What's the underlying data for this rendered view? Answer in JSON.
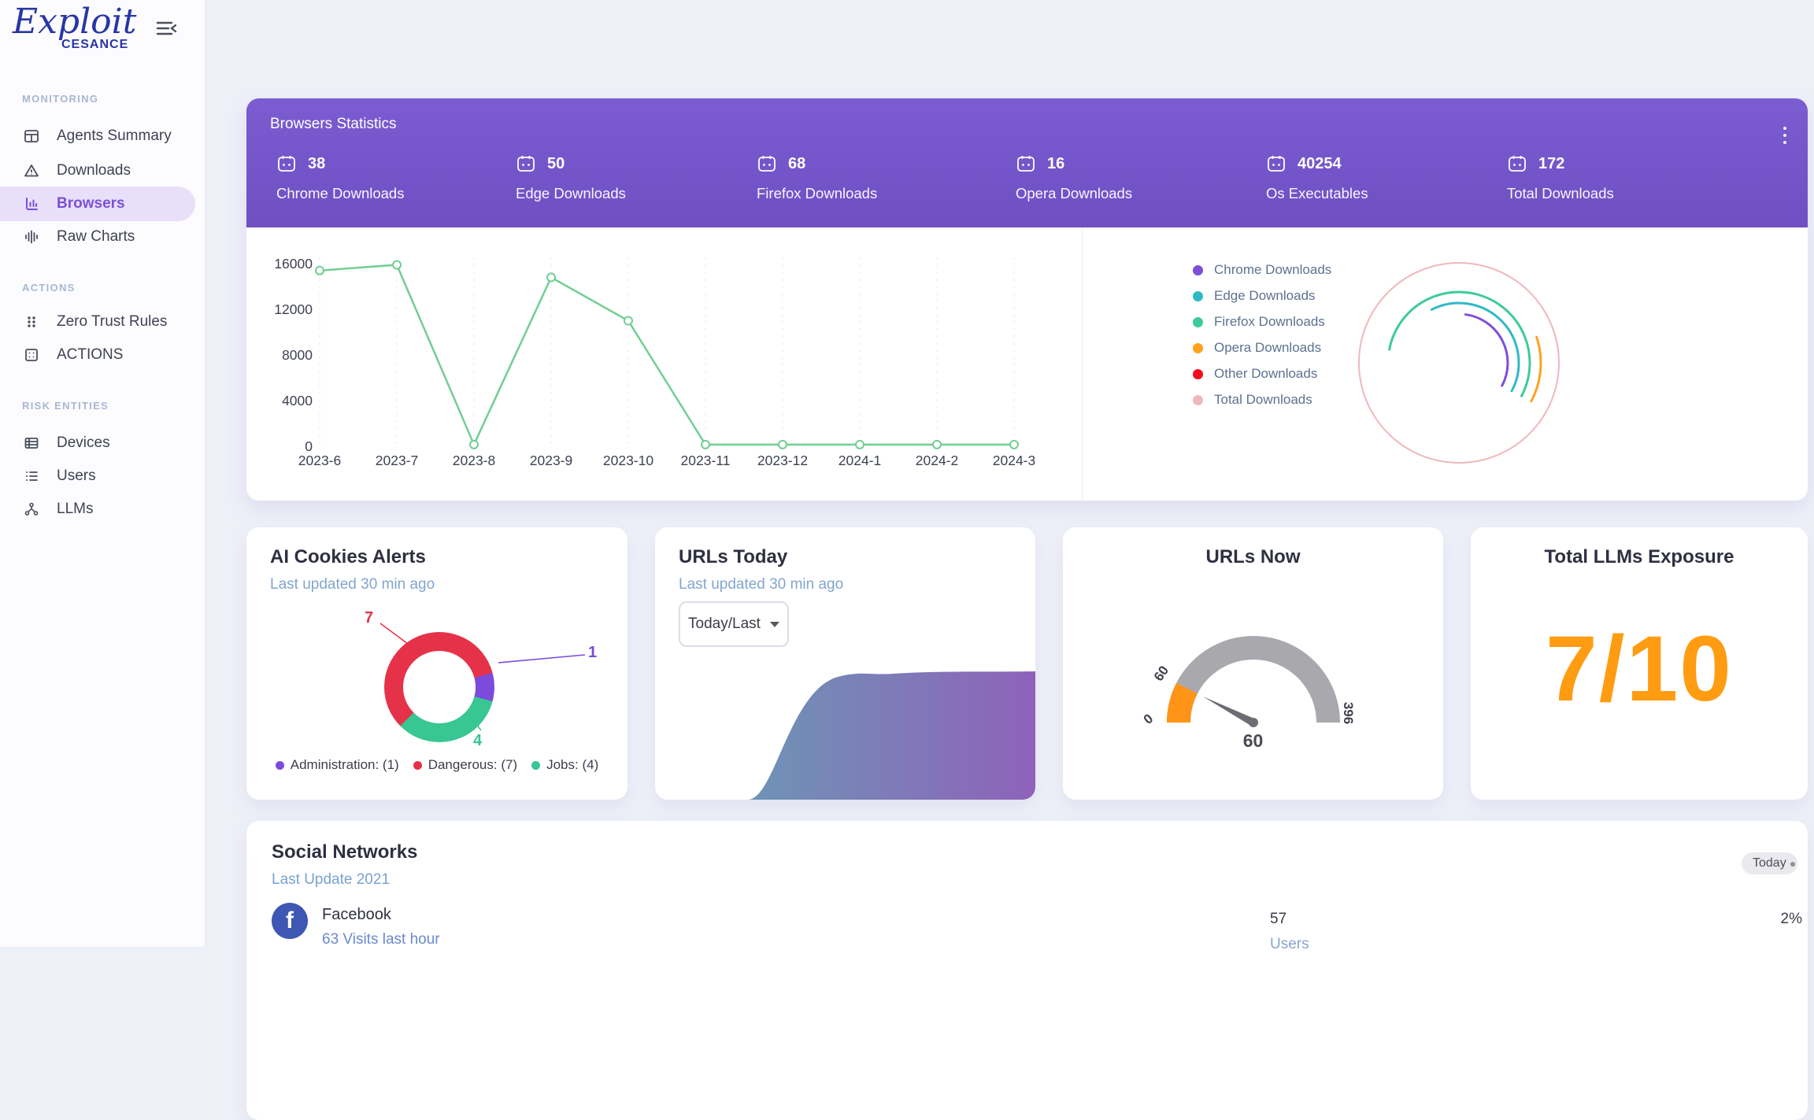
{
  "brand": {
    "name": "Exploit",
    "sub": "CESANCE"
  },
  "sidebar": {
    "sections": [
      {
        "label": "MONITORING",
        "items": [
          {
            "label": "Agents Summary"
          },
          {
            "label": "Downloads"
          },
          {
            "label": "Browsers",
            "active": true
          },
          {
            "label": "Raw Charts"
          }
        ]
      },
      {
        "label": "ACTIONS",
        "items": [
          {
            "label": "Zero Trust Rules"
          },
          {
            "label": "ACTIONS"
          }
        ]
      },
      {
        "label": "RISK ENTITIES",
        "items": [
          {
            "label": "Devices"
          },
          {
            "label": "Users"
          },
          {
            "label": "LLMs"
          }
        ]
      }
    ]
  },
  "browsers_card": {
    "title": "Browsers Statistics",
    "stats": [
      {
        "value": "38",
        "label": "Chrome Downloads"
      },
      {
        "value": "50",
        "label": "Edge Downloads"
      },
      {
        "value": "68",
        "label": "Firefox Downloads"
      },
      {
        "value": "16",
        "label": "Opera Downloads"
      },
      {
        "value": "40254",
        "label": "Os Executables"
      },
      {
        "value": "172",
        "label": "Total Downloads"
      }
    ],
    "chart_data": {
      "type": "line",
      "categories": [
        "2023-6",
        "2023-7",
        "2023-8",
        "2023-9",
        "2023-10",
        "2023-11",
        "2023-12",
        "2024-1",
        "2024-2",
        "2024-3"
      ],
      "values": [
        15400,
        15900,
        150,
        14800,
        11000,
        150,
        150,
        150,
        150,
        150
      ],
      "ylim": [
        0,
        16000
      ],
      "yticks": [
        0,
        4000,
        8000,
        12000,
        16000
      ],
      "line_color": "#72ce92",
      "grid": "vertical-dashed"
    },
    "legend": [
      {
        "label": "Chrome Downloads",
        "color": "#7e4fd8",
        "value": 38
      },
      {
        "label": "Edge Downloads",
        "color": "#2fb9c7",
        "value": 50
      },
      {
        "label": "Firefox Downloads",
        "color": "#3ecb97",
        "value": 68
      },
      {
        "label": "Opera Downloads",
        "color": "#ffa21f",
        "value": 16
      },
      {
        "label": "Other Downloads",
        "color": "#f20d1e",
        "value": null
      },
      {
        "label": "Total Downloads",
        "color": "#efb8bc",
        "value": 172
      }
    ]
  },
  "cards": {
    "ai": {
      "title": "AI Cookies Alerts",
      "subtitle": "Last updated 30 min ago",
      "chart_data": {
        "type": "pie",
        "segments": [
          {
            "label": "Dangerous",
            "value": 7,
            "color": "#e63249"
          },
          {
            "label": "Administration",
            "value": 1,
            "color": "#7c4bdb"
          },
          {
            "label": "Jobs",
            "value": 4,
            "color": "#38c693"
          }
        ]
      },
      "callouts": {
        "dangerous": "7",
        "administration": "1",
        "jobs": "4"
      },
      "legend": [
        {
          "label": "Administration: (1)",
          "color": "#7c4bdb"
        },
        {
          "label": "Dangerous: (7)",
          "color": "#e63249"
        },
        {
          "label": "Jobs: (4)",
          "color": "#38c693"
        }
      ]
    },
    "urls_today": {
      "title": "URLs Today",
      "subtitle": "Last updated 30 min ago",
      "range_select": "Today/Last"
    },
    "urls_now": {
      "title": "URLs Now",
      "chart_data": {
        "type": "gauge",
        "min": 0,
        "max": 396,
        "value": 60,
        "accent": "#ff9418",
        "track": "#a9a9ad"
      },
      "tick_label": "60"
    },
    "llm": {
      "title": "Total LLMs Exposure",
      "value": "7/10",
      "color": "#ff9c12"
    }
  },
  "social": {
    "title": "Social Networks",
    "subtitle": "Last Update 2021",
    "badge": "Today",
    "rows": [
      {
        "network": "Facebook",
        "visits": "63 Visits last hour",
        "users": "57",
        "users_label": "Users",
        "percent": "2%"
      }
    ]
  }
}
